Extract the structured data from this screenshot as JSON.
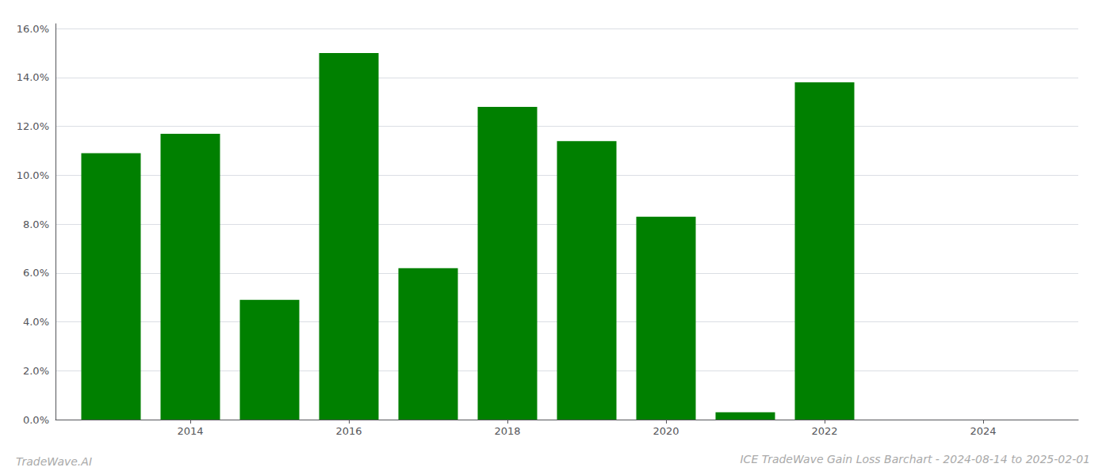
{
  "chart_data": {
    "type": "bar",
    "title": "ICE TradeWave Gain Loss Barchart - 2024-08-14 to 2025-02-01",
    "annotations": [
      "TradeWave.AI"
    ],
    "x": [
      2013,
      2014,
      2015,
      2016,
      2017,
      2018,
      2019,
      2020,
      2021,
      2022,
      2023
    ],
    "values": [
      0.109,
      0.117,
      0.049,
      0.15,
      0.062,
      0.128,
      0.114,
      0.083,
      0.003,
      0.138,
      0.0
    ],
    "color": "#008000",
    "xlim": [
      2012.3,
      2025.2
    ],
    "xticks": [
      2014,
      2016,
      2018,
      2020,
      2022,
      2024
    ],
    "ylim": [
      0,
      0.162
    ],
    "yticks": [
      {
        "value": 0,
        "label": "0.0%"
      },
      {
        "value": 0.02,
        "label": "2.0%"
      },
      {
        "value": 0.04,
        "label": "4.0%"
      },
      {
        "value": 0.06,
        "label": "6.0%"
      },
      {
        "value": 0.08,
        "label": "8.0%"
      },
      {
        "value": 0.1,
        "label": "10.0%"
      },
      {
        "value": 0.12,
        "label": "12.0%"
      },
      {
        "value": 0.14,
        "label": "14.0%"
      },
      {
        "value": 0.16,
        "label": "16.0%"
      }
    ],
    "grid": true
  }
}
